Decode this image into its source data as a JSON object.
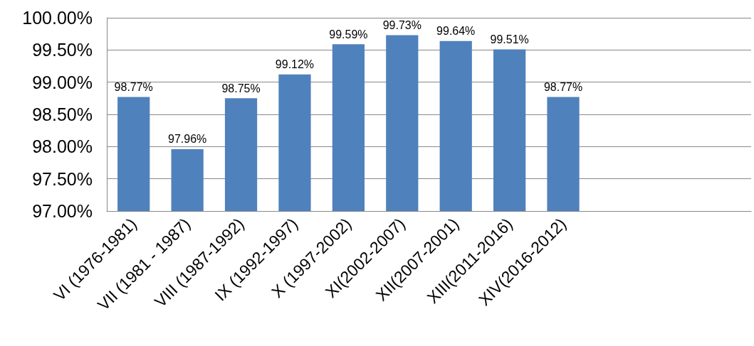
{
  "chart_data": {
    "type": "bar",
    "categories": [
      "VI (1976-1981)",
      "VII (1981 - 1987)",
      "VIII (1987-1992)",
      "IX (1992-1997)",
      "X (1997-2002)",
      "XI(2002-2007)",
      "XII(2007-2001)",
      "XIII(2011-2016)",
      "XIV(2016-2012)",
      null,
      null,
      null
    ],
    "values": [
      98.77,
      97.96,
      98.75,
      99.12,
      99.59,
      99.73,
      99.64,
      99.51,
      98.77,
      null,
      null,
      null
    ],
    "value_labels": [
      "98.77%",
      "97.96%",
      "98.75%",
      "99.12%",
      "99.59%",
      "99.73%",
      "99.64%",
      "99.51%",
      "98.77%",
      null,
      null,
      null
    ],
    "color": "#4f81bd",
    "ylim": [
      97,
      100
    ],
    "yticks": [
      {
        "value": 97,
        "label": "97.00%"
      },
      {
        "value": 97.5,
        "label": "97.50%"
      },
      {
        "value": 98,
        "label": "98.00%"
      },
      {
        "value": 98.5,
        "label": "98.50%"
      },
      {
        "value": 99,
        "label": "99.00%"
      },
      {
        "value": 99.5,
        "label": "99.50%"
      },
      {
        "value": 100,
        "label": "100.00%"
      }
    ],
    "grid": "y"
  }
}
